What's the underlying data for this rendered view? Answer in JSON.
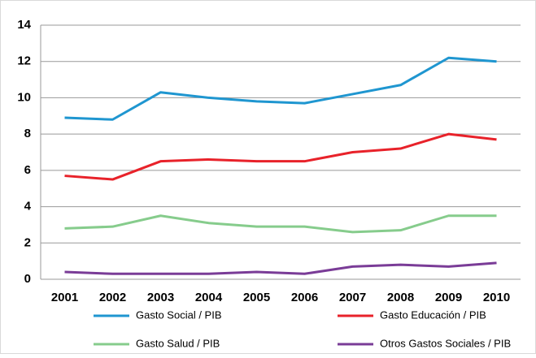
{
  "chart_data": {
    "type": "line",
    "categories": [
      "2001",
      "2002",
      "2003",
      "2004",
      "2005",
      "2006",
      "2007",
      "2008",
      "2009",
      "2010"
    ],
    "series": [
      {
        "name": "Gasto Social / PIB",
        "color": "#1f96d0",
        "values": [
          8.9,
          8.8,
          10.3,
          10.0,
          9.8,
          9.7,
          10.2,
          10.7,
          12.2,
          12.0
        ]
      },
      {
        "name": "Gasto Educación / PIB",
        "color": "#e8222a",
        "values": [
          5.7,
          5.5,
          6.5,
          6.6,
          6.5,
          6.5,
          7.0,
          7.2,
          8.0,
          7.7
        ]
      },
      {
        "name": "Gasto Salud / PIB",
        "color": "#86cc8c",
        "values": [
          2.8,
          2.9,
          3.5,
          3.1,
          2.9,
          2.9,
          2.6,
          2.7,
          3.5,
          3.5
        ]
      },
      {
        "name": "Otros Gastos Sociales / PIB",
        "color": "#7a3c97",
        "values": [
          0.4,
          0.3,
          0.3,
          0.3,
          0.4,
          0.3,
          0.7,
          0.8,
          0.7,
          0.9
        ]
      }
    ],
    "ylim": [
      0,
      14
    ],
    "yticks": [
      0,
      2,
      4,
      6,
      8,
      10,
      12,
      14
    ],
    "grid": true,
    "legend": "bottom"
  }
}
